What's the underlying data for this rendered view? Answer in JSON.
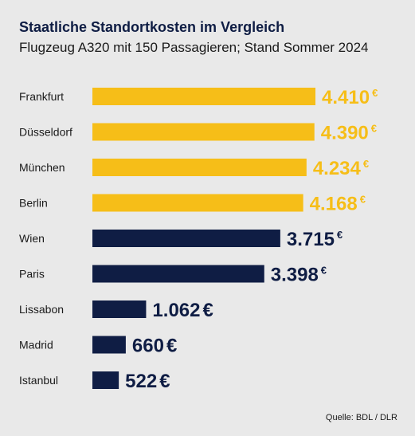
{
  "chart_data": {
    "type": "bar",
    "orientation": "horizontal",
    "title": "Staatliche Standortkosten im Vergleich",
    "subtitle": "Flugzeug A320 mit 150 Passagieren; Stand Sommer 2024",
    "categories": [
      "Frankfurt",
      "Düsseldorf",
      "München",
      "Berlin",
      "Wien",
      "Paris",
      "Lissabon",
      "Madrid",
      "Istanbul"
    ],
    "values": [
      4410,
      4390,
      4234,
      4168,
      3715,
      3398,
      1062,
      660,
      522
    ],
    "value_labels": [
      "4.410",
      "4.390",
      "4.234",
      "4.168",
      "3.715",
      "3.398",
      "1.062",
      "660",
      "522"
    ],
    "currency_symbol": "€",
    "grid": false,
    "legend": "none",
    "colors": {
      "germany": "#f6be18",
      "other": "#0f1d44"
    },
    "highlight_count": 4
  },
  "source": "Quelle: BDL / DLR"
}
